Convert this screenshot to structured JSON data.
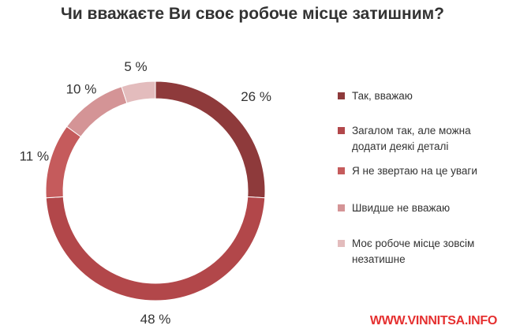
{
  "chart_data": {
    "type": "pie",
    "title": "Чи вважаєте Ви своє робоче місце затишним?",
    "categories": [
      "Так, вважаю",
      "Загалом так, але можна додати деякі деталі",
      "Я не звертаю на це уваги",
      "Швидше не вважаю",
      "Моє робоче місце зовсім незатишне"
    ],
    "values": [
      26,
      48,
      11,
      10,
      5
    ],
    "labels": [
      "26 %",
      "48 %",
      "11 %",
      "10 %",
      "5 %"
    ],
    "colors": [
      "#8e3a3b",
      "#b2474a",
      "#c55b5c",
      "#d49496",
      "#e3bcbd"
    ],
    "legend_position": "right",
    "donut": true
  },
  "watermark": {
    "text": "WWW.VINNITSA.INFO"
  }
}
